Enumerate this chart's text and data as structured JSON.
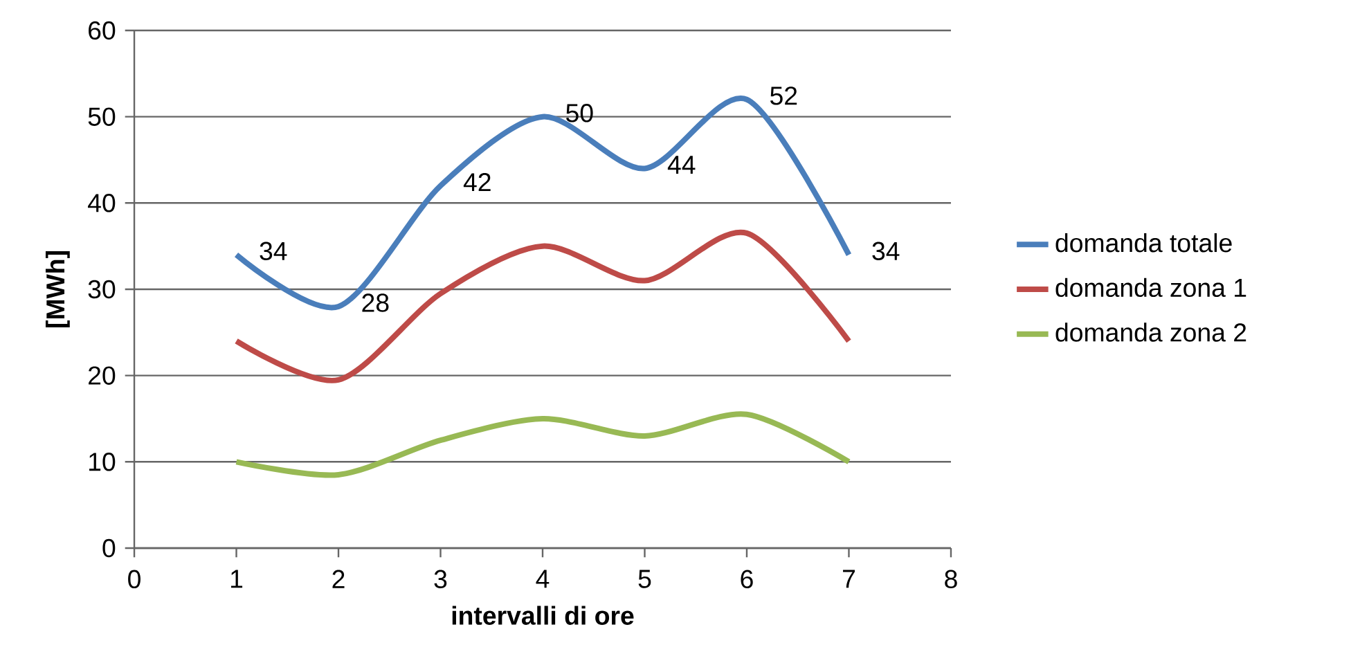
{
  "chart_data": {
    "type": "line",
    "xlabel": "intervalli di ore",
    "ylabel": "[MWh]",
    "x": [
      1,
      2,
      3,
      4,
      5,
      6,
      7
    ],
    "series": [
      {
        "name": "domanda totale",
        "color": "#4a7ebb",
        "values": [
          34,
          28,
          42,
          50,
          44,
          52,
          34
        ],
        "value_labels": [
          "34",
          "28",
          "42",
          "50",
          "44",
          "52",
          "34"
        ]
      },
      {
        "name": "domanda zona 1",
        "color": "#be4b48",
        "values": [
          24,
          19.5,
          29.5,
          35,
          31,
          36.5,
          24
        ]
      },
      {
        "name": "domanda zona 2",
        "color": "#98b954",
        "values": [
          10,
          8.5,
          12.5,
          15,
          13,
          15.5,
          10
        ]
      }
    ],
    "xlim": [
      0,
      8
    ],
    "xticks": [
      0,
      1,
      2,
      3,
      4,
      5,
      6,
      7,
      8
    ],
    "ylim": [
      0,
      60
    ],
    "yticks": [
      0,
      10,
      20,
      30,
      40,
      50,
      60
    ],
    "grid": "y",
    "legend": "right",
    "marker": "none",
    "line_style": "solid"
  }
}
